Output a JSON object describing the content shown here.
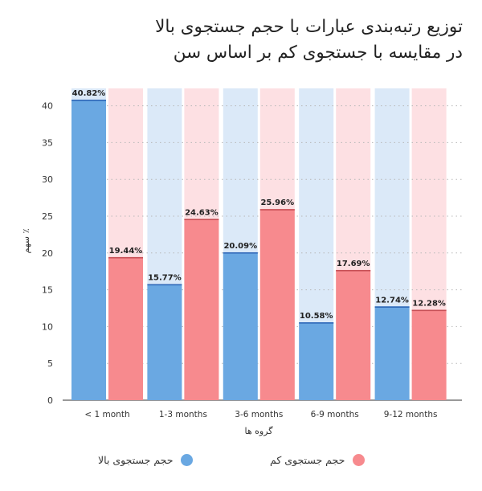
{
  "title": {
    "line1": "توزیع رتبه‌بندی عبارات با حجم جستجوی بالا",
    "line2": "در مقایسه با جستجوی کم بر اساس سن"
  },
  "chart_data": {
    "type": "bar",
    "categories": [
      "< 1 month",
      "1-3 months",
      "3-6 months",
      "6-9 months",
      "9-12 months"
    ],
    "series": [
      {
        "name": "حجم جستجوی بالا",
        "values": [
          40.82,
          15.77,
          20.09,
          10.58,
          12.74
        ],
        "labels": [
          "40.82%",
          "15.77%",
          "20.09%",
          "10.58%",
          "12.74%"
        ],
        "color": "#6aa8e2",
        "bg_color": "#dbe9f8",
        "top_color": "#2f68b8"
      },
      {
        "name": "حجم جستجوی کم",
        "values": [
          19.44,
          24.63,
          25.96,
          17.69,
          12.28
        ],
        "labels": [
          "19.44%",
          "24.63%",
          "25.96%",
          "17.69%",
          "12.28%"
        ],
        "color": "#f78a8e",
        "bg_color": "#fde0e3",
        "top_color": "#c74f55"
      }
    ],
    "xlabel": "گروه ها",
    "ylabel": "٪ سهم",
    "yticks": [
      0,
      5,
      10,
      15,
      20,
      25,
      30,
      35,
      40
    ],
    "ylim": [
      0,
      42
    ],
    "grid": true,
    "legend_position": "bottom"
  },
  "legend": {
    "items": [
      {
        "label": "حجم جستجوی بالا",
        "color": "#6aa8e2"
      },
      {
        "label": "حجم جستجوی کم",
        "color": "#f78a8e"
      }
    ]
  }
}
